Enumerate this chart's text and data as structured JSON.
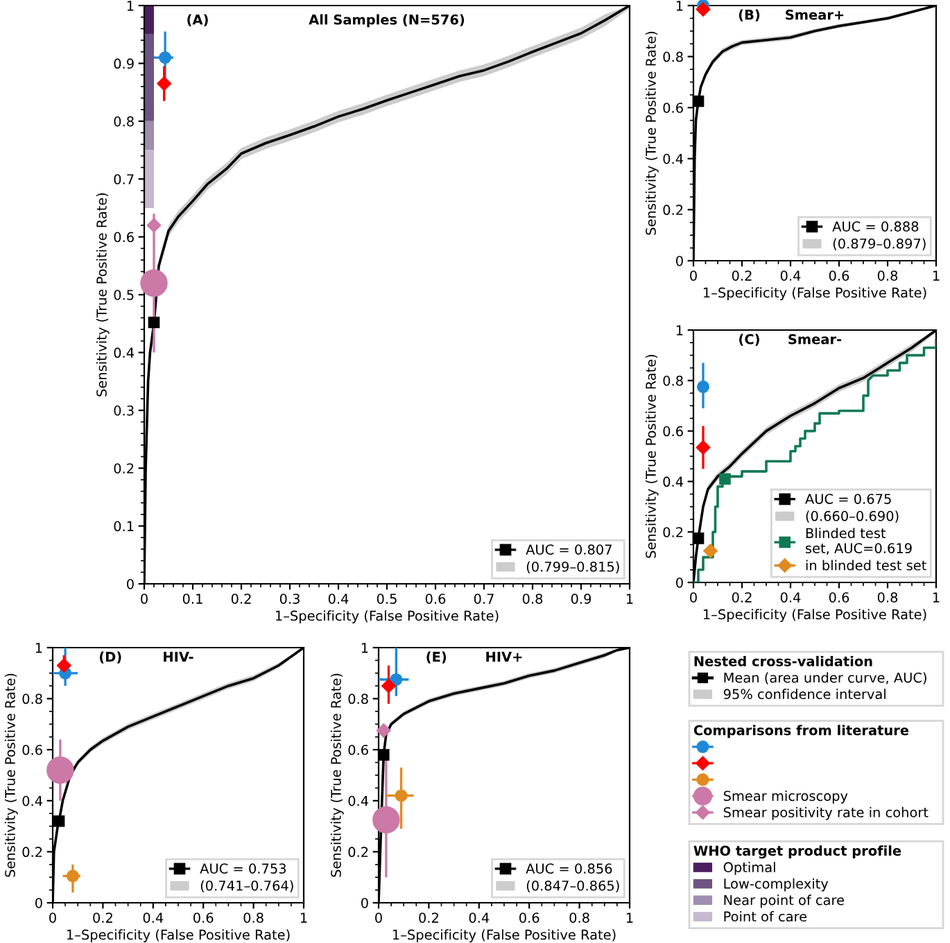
{
  "chart_data": [
    {
      "type": "line",
      "title": "All Samples (N=576)",
      "annotations": [
        "(A)"
      ],
      "xlabel": "1–Specificity (False Positive Rate)",
      "ylabel": "Sensitivity (True Positive Rate)",
      "xlim": [
        0,
        1
      ],
      "ylim": [
        0,
        1
      ],
      "xticks": [
        0,
        0.1,
        0.2,
        0.3,
        0.4,
        0.5,
        0.6,
        0.7,
        0.8,
        0.9,
        1
      ],
      "yticks": [
        0,
        0.1,
        0.2,
        0.3,
        0.4,
        0.5,
        0.6,
        0.7,
        0.8,
        0.9,
        1
      ],
      "legend": "lower right",
      "grid": false,
      "series": [
        {
          "type": "bar",
          "color": "#4b1f5e",
          "x": [
            0.01
          ],
          "base": [
            0.95
          ],
          "values": [
            0.05
          ]
        },
        {
          "type": "bar",
          "color": "#6e5482",
          "x": [
            0.01
          ],
          "base": [
            0.8
          ],
          "values": [
            0.15
          ]
        },
        {
          "type": "bar",
          "color": "#9f8eae",
          "x": [
            0.01
          ],
          "base": [
            0.75
          ],
          "values": [
            0.05
          ]
        },
        {
          "type": "bar",
          "color": "#c5b8cf",
          "x": [
            0.01
          ],
          "base": [
            0.65
          ],
          "values": [
            0.1
          ]
        },
        {
          "type": "line",
          "color": "#000000",
          "x": [
            0,
            0.003,
            0.008,
            0.012,
            0.02,
            0.025,
            0.03,
            0.04,
            0.05,
            0.07,
            0.1,
            0.13,
            0.17,
            0.2,
            0.25,
            0.3,
            0.35,
            0.4,
            0.45,
            0.5,
            0.55,
            0.6,
            0.65,
            0.7,
            0.75,
            0.8,
            0.85,
            0.9,
            0.95,
            1
          ],
          "values": [
            0,
            0.2,
            0.35,
            0.4,
            0.45,
            0.5,
            0.55,
            0.58,
            0.61,
            0.635,
            0.662,
            0.691,
            0.718,
            0.744,
            0.762,
            0.776,
            0.791,
            0.808,
            0.821,
            0.836,
            0.85,
            0.864,
            0.878,
            0.888,
            0.903,
            0.92,
            0.936,
            0.952,
            0.975,
            1
          ],
          "lower": [
            0,
            0.19,
            0.34,
            0.39,
            0.44,
            0.49,
            0.54,
            0.57,
            0.6,
            0.625,
            0.652,
            0.681,
            0.708,
            0.734,
            0.752,
            0.766,
            0.781,
            0.798,
            0.811,
            0.826,
            0.84,
            0.854,
            0.868,
            0.878,
            0.893,
            0.91,
            0.926,
            0.942,
            0.965,
            0.995
          ],
          "upper": [
            0.01,
            0.21,
            0.36,
            0.41,
            0.46,
            0.51,
            0.56,
            0.59,
            0.62,
            0.645,
            0.672,
            0.701,
            0.728,
            0.754,
            0.772,
            0.786,
            0.801,
            0.818,
            0.831,
            0.846,
            0.86,
            0.874,
            0.888,
            0.898,
            0.913,
            0.93,
            0.946,
            0.962,
            0.985,
            1
          ]
        },
        {
          "type": "scatter",
          "marker": "square",
          "name": "AUC = 0.807",
          "color": "#000000",
          "x": [
            0.02
          ],
          "values": [
            0.452
          ]
        },
        {
          "type": "area",
          "name": "(0.799–0.815)",
          "color": "#cccccc"
        },
        {
          "type": "bubble",
          "marker": "circle",
          "color": "#cc79a7",
          "x": [
            0.02
          ],
          "values": [
            0.52
          ],
          "sizes": [
            1
          ],
          "errors": [
            [
              0.4,
              0.6
            ]
          ]
        },
        {
          "type": "scatter",
          "marker": "diamond",
          "color": "#cc79a7",
          "x": [
            0.02
          ],
          "values": [
            0.62
          ],
          "errors": [
            [
              0.6,
              0.64
            ]
          ]
        },
        {
          "type": "scatter",
          "marker": "circle",
          "color": "#1f88d6",
          "x": [
            0.043
          ],
          "values": [
            0.91
          ],
          "errors": [
            [
              0.87,
              0.955
            ]
          ],
          "xerrors": [
            [
              0.02,
              0.06
            ]
          ]
        },
        {
          "type": "scatter",
          "marker": "diamond",
          "color": "#ff0000",
          "x": [
            0.041
          ],
          "values": [
            0.865
          ],
          "errors": [
            [
              0.835,
              0.895
            ]
          ]
        }
      ]
    },
    {
      "type": "line",
      "title": "Smear+",
      "annotations": [
        "(B)"
      ],
      "xlabel": "1–Specificity (False Positive Rate)",
      "ylabel": "Sensitivity (True Positive Rate)",
      "xlim": [
        0,
        1
      ],
      "ylim": [
        0,
        1
      ],
      "xticks": [
        0,
        0.2,
        0.4,
        0.6,
        0.8,
        1
      ],
      "yticks": [
        0,
        0.2,
        0.4,
        0.6,
        0.8,
        1
      ],
      "legend": "lower right",
      "grid": false,
      "series": [
        {
          "type": "line",
          "color": "#000000",
          "x": [
            0,
            0.005,
            0.01,
            0.02,
            0.03,
            0.05,
            0.08,
            0.12,
            0.16,
            0.2,
            0.3,
            0.4,
            0.5,
            0.6,
            0.7,
            0.8,
            0.9,
            1
          ],
          "values": [
            0,
            0.4,
            0.55,
            0.625,
            0.68,
            0.73,
            0.78,
            0.82,
            0.84,
            0.855,
            0.865,
            0.875,
            0.9,
            0.92,
            0.935,
            0.95,
            0.975,
            1
          ],
          "lower": [
            0,
            0.39,
            0.54,
            0.615,
            0.67,
            0.718,
            0.768,
            0.808,
            0.828,
            0.845,
            0.855,
            0.865,
            0.892,
            0.912,
            0.928,
            0.943,
            0.97,
            0.995
          ],
          "upper": [
            0.01,
            0.41,
            0.56,
            0.635,
            0.69,
            0.742,
            0.792,
            0.832,
            0.852,
            0.865,
            0.875,
            0.885,
            0.908,
            0.928,
            0.942,
            0.957,
            0.98,
            1
          ]
        },
        {
          "type": "scatter",
          "marker": "square",
          "name": "AUC = 0.888",
          "color": "#000000",
          "x": [
            0.02
          ],
          "values": [
            0.625
          ]
        },
        {
          "type": "area",
          "name": "(0.879–0.897)",
          "color": "#cccccc"
        },
        {
          "type": "scatter",
          "marker": "circle",
          "color": "#1f88d6",
          "x": [
            0.04
          ],
          "values": [
            1
          ]
        },
        {
          "type": "scatter",
          "marker": "diamond",
          "color": "#ff0000",
          "x": [
            0.04
          ],
          "values": [
            0.985
          ]
        }
      ]
    },
    {
      "type": "line",
      "title": "Smear-",
      "annotations": [
        "(C)"
      ],
      "xlabel": "1–Specificity (False Positive Rate)",
      "ylabel": "Sensitivity (True Positive Rate)",
      "xlim": [
        0,
        1
      ],
      "ylim": [
        0,
        1
      ],
      "xticks": [
        0,
        0.2,
        0.4,
        0.6,
        0.8,
        1
      ],
      "yticks": [
        0,
        0.2,
        0.4,
        0.6,
        0.8,
        1
      ],
      "legend": "lower right",
      "grid": false,
      "series": [
        {
          "type": "line",
          "color": "#000000",
          "x": [
            0,
            0.01,
            0.02,
            0.04,
            0.06,
            0.1,
            0.15,
            0.2,
            0.3,
            0.4,
            0.5,
            0.6,
            0.7,
            0.8,
            0.9,
            1
          ],
          "values": [
            0,
            0.1,
            0.175,
            0.3,
            0.37,
            0.42,
            0.46,
            0.51,
            0.6,
            0.66,
            0.71,
            0.77,
            0.81,
            0.87,
            0.93,
            1
          ],
          "lower": [
            0,
            0.085,
            0.16,
            0.285,
            0.355,
            0.405,
            0.445,
            0.495,
            0.585,
            0.645,
            0.695,
            0.755,
            0.795,
            0.855,
            0.915,
            0.99
          ],
          "upper": [
            0.01,
            0.115,
            0.19,
            0.315,
            0.385,
            0.435,
            0.475,
            0.525,
            0.615,
            0.675,
            0.725,
            0.785,
            0.825,
            0.885,
            0.945,
            1
          ]
        },
        {
          "type": "scatter",
          "marker": "square",
          "name": "AUC = 0.675",
          "color": "#000000",
          "x": [
            0.02
          ],
          "values": [
            0.175
          ]
        },
        {
          "type": "area",
          "name": "(0.660–0.690)",
          "color": "#cccccc"
        },
        {
          "type": "line",
          "color": "#117a55",
          "x": [
            0,
            0.02,
            0.02,
            0.04,
            0.04,
            0.08,
            0.08,
            0.09,
            0.09,
            0.1,
            0.1,
            0.12,
            0.12,
            0.2,
            0.2,
            0.3,
            0.3,
            0.4,
            0.4,
            0.42,
            0.42,
            0.44,
            0.44,
            0.46,
            0.46,
            0.5,
            0.5,
            0.52,
            0.52,
            0.6,
            0.6,
            0.7,
            0.7,
            0.72,
            0.72,
            0.74,
            0.8,
            0.8,
            0.85,
            0.85,
            0.88,
            0.88,
            0.95,
            0.95,
            1,
            1
          ],
          "values": [
            0,
            0,
            0.05,
            0.05,
            0.1,
            0.1,
            0.2,
            0.2,
            0.3,
            0.3,
            0.38,
            0.38,
            0.42,
            0.42,
            0.44,
            0.44,
            0.48,
            0.48,
            0.52,
            0.52,
            0.54,
            0.54,
            0.57,
            0.57,
            0.6,
            0.6,
            0.63,
            0.63,
            0.67,
            0.67,
            0.68,
            0.68,
            0.74,
            0.74,
            0.8,
            0.82,
            0.82,
            0.84,
            0.84,
            0.87,
            0.87,
            0.9,
            0.9,
            0.93,
            0.93,
            0.96
          ]
        },
        {
          "type": "scatter",
          "marker": "square",
          "name": "Blinded test\nset, AUC=0.619",
          "color": "#117a55",
          "x": [
            0.13
          ],
          "values": [
            0.41
          ]
        },
        {
          "type": "scatter",
          "marker": "circle",
          "color": "#1f88d6",
          "x": [
            0.04
          ],
          "values": [
            0.775
          ],
          "errors": [
            [
              0.69,
              0.87
            ]
          ]
        },
        {
          "type": "scatter",
          "marker": "diamond",
          "color": "#ff0000",
          "x": [
            0.04
          ],
          "values": [
            0.535
          ],
          "errors": [
            [
              0.45,
              0.62
            ]
          ]
        },
        {
          "type": "scatter",
          "marker": "diamond",
          "name": "in blinded test set",
          "color": "#e08a20",
          "x": [
            0.07
          ],
          "values": [
            0.125
          ]
        }
      ]
    },
    {
      "type": "line",
      "title": "HIV-",
      "annotations": [
        "(D)"
      ],
      "xlabel": "1–Specificity (False Positive Rate)",
      "ylabel": "Sensitivity (True Positive Rate)",
      "xlim": [
        0,
        1
      ],
      "ylim": [
        0,
        1
      ],
      "xticks": [
        0,
        0.2,
        0.4,
        0.6,
        0.8,
        1
      ],
      "yticks": [
        0,
        0.2,
        0.4,
        0.6,
        0.8,
        1
      ],
      "legend": "lower right",
      "grid": false,
      "series": [
        {
          "type": "line",
          "color": "#000000",
          "x": [
            0,
            0.005,
            0.02,
            0.025,
            0.04,
            0.07,
            0.1,
            0.15,
            0.2,
            0.3,
            0.4,
            0.5,
            0.6,
            0.7,
            0.8,
            0.9,
            1
          ],
          "values": [
            0,
            0.2,
            0.3,
            0.32,
            0.4,
            0.5,
            0.55,
            0.6,
            0.635,
            0.69,
            0.73,
            0.77,
            0.81,
            0.85,
            0.88,
            0.93,
            1
          ],
          "lower": [
            0,
            0.188,
            0.288,
            0.308,
            0.388,
            0.488,
            0.538,
            0.588,
            0.623,
            0.678,
            0.718,
            0.758,
            0.798,
            0.838,
            0.868,
            0.92,
            0.995
          ],
          "upper": [
            0.01,
            0.212,
            0.312,
            0.332,
            0.412,
            0.512,
            0.562,
            0.612,
            0.647,
            0.702,
            0.742,
            0.782,
            0.822,
            0.862,
            0.892,
            0.94,
            1
          ]
        },
        {
          "type": "scatter",
          "marker": "square",
          "name": "AUC = 0.753",
          "color": "#000000",
          "x": [
            0.025
          ],
          "values": [
            0.32
          ]
        },
        {
          "type": "area",
          "name": "(0.741–0.764)",
          "color": "#cccccc"
        },
        {
          "type": "bubble",
          "marker": "circle",
          "color": "#cc79a7",
          "x": [
            0.03
          ],
          "values": [
            0.52
          ],
          "sizes": [
            1
          ],
          "errors": [
            [
              0.4,
              0.64
            ]
          ]
        },
        {
          "type": "scatter",
          "marker": "circle",
          "color": "#1f88d6",
          "x": [
            0.05
          ],
          "values": [
            0.9
          ],
          "errors": [
            [
              0.85,
              1
            ]
          ],
          "xerrors": [
            [
              0,
              0.1
            ]
          ]
        },
        {
          "type": "scatter",
          "marker": "diamond",
          "color": "#ff0000",
          "x": [
            0.045
          ],
          "values": [
            0.93
          ],
          "errors": [
            [
              0.89,
              0.97
            ]
          ],
          "xerrors": [
            [
              0.035,
              0.055
            ]
          ]
        },
        {
          "type": "scatter",
          "marker": "circle",
          "color": "#e08a20",
          "x": [
            0.08
          ],
          "values": [
            0.105
          ],
          "errors": [
            [
              0.04,
              0.15
            ]
          ],
          "xerrors": [
            [
              0.04,
              0.11
            ]
          ]
        }
      ]
    },
    {
      "type": "line",
      "title": "HIV+",
      "annotations": [
        "(E)"
      ],
      "xlabel": "1–Specificity (False Positive Rate)",
      "ylabel": "Sensitivity (True Positive Rate)",
      "xlim": [
        0,
        1
      ],
      "ylim": [
        0,
        1
      ],
      "xticks": [
        0,
        0.2,
        0.4,
        0.6,
        0.8,
        1
      ],
      "yticks": [
        0,
        0.2,
        0.4,
        0.6,
        0.8,
        1
      ],
      "legend": "lower right",
      "grid": false,
      "series": [
        {
          "type": "line",
          "color": "#000000",
          "x": [
            0,
            0.01,
            0.02,
            0.03,
            0.05,
            0.1,
            0.2,
            0.3,
            0.4,
            0.5,
            0.6,
            0.7,
            0.8,
            0.9,
            0.95,
            1
          ],
          "values": [
            0,
            0.3,
            0.58,
            0.66,
            0.7,
            0.74,
            0.79,
            0.82,
            0.84,
            0.86,
            0.89,
            0.91,
            0.94,
            0.97,
            0.99,
            1
          ],
          "lower": [
            0,
            0.29,
            0.57,
            0.65,
            0.69,
            0.73,
            0.78,
            0.81,
            0.83,
            0.85,
            0.88,
            0.9,
            0.93,
            0.96,
            0.985,
            0.995
          ],
          "upper": [
            0.01,
            0.31,
            0.59,
            0.67,
            0.71,
            0.75,
            0.8,
            0.83,
            0.85,
            0.87,
            0.9,
            0.92,
            0.95,
            0.98,
            0.995,
            1
          ]
        },
        {
          "type": "scatter",
          "marker": "square",
          "name": "AUC = 0.856",
          "color": "#000000",
          "x": [
            0.02
          ],
          "values": [
            0.58
          ]
        },
        {
          "type": "area",
          "name": "(0.847–0.865)",
          "color": "#cccccc"
        },
        {
          "type": "bubble",
          "marker": "circle",
          "color": "#cc79a7",
          "x": [
            0.03
          ],
          "values": [
            0.325
          ],
          "sizes": [
            1
          ],
          "errors": [
            [
              0.1,
              0.58
            ]
          ]
        },
        {
          "type": "scatter",
          "marker": "diamond",
          "color": "#cc79a7",
          "x": [
            0.02
          ],
          "values": [
            0.675
          ]
        },
        {
          "type": "scatter",
          "marker": "circle",
          "color": "#1f88d6",
          "x": [
            0.07
          ],
          "values": [
            0.875
          ],
          "errors": [
            [
              0.81,
              1
            ]
          ],
          "xerrors": [
            [
              0,
              0.12
            ]
          ]
        },
        {
          "type": "scatter",
          "marker": "diamond",
          "color": "#ff0000",
          "x": [
            0.04
          ],
          "values": [
            0.85
          ],
          "errors": [
            [
              0.78,
              0.93
            ]
          ],
          "xerrors": [
            [
              0.03,
              0.05
            ]
          ]
        },
        {
          "type": "scatter",
          "marker": "circle",
          "color": "#e08a20",
          "x": [
            0.09
          ],
          "values": [
            0.42
          ],
          "errors": [
            [
              0.29,
              0.53
            ]
          ],
          "xerrors": [
            [
              0.03,
              0.14
            ]
          ]
        }
      ]
    },
    {
      "type": "other",
      "legend_title": "Nested cross-validation",
      "legend": "right",
      "series": [
        {
          "type": "line",
          "marker": "square",
          "name": "Mean (area under curve, AUC)",
          "color": "#000000"
        },
        {
          "type": "area",
          "name": "95% confidence interval",
          "color": "#cccccc"
        }
      ]
    },
    {
      "type": "other",
      "legend_title": "Comparisons from literature",
      "legend": "right",
      "series": [
        {
          "type": "scatter",
          "marker": "circle",
          "color": "#1f88d6"
        },
        {
          "type": "scatter",
          "marker": "diamond",
          "color": "#ff0000"
        },
        {
          "type": "scatter",
          "marker": "circle",
          "color": "#e08a20"
        },
        {
          "type": "bubble",
          "marker": "circle",
          "name": "Smear microscopy",
          "color": "#cc79a7"
        },
        {
          "type": "scatter",
          "marker": "diamond",
          "name": "Smear positivity rate in cohort",
          "color": "#cc79a7"
        }
      ]
    },
    {
      "type": "other",
      "legend_title": "WHO target product profile",
      "legend": "right",
      "series": [
        {
          "type": "bar",
          "name": "Optimal",
          "color": "#4b1f5e"
        },
        {
          "type": "bar",
          "name": "Low-complexity",
          "color": "#6e5482"
        },
        {
          "type": "bar",
          "name": "Near point of care",
          "color": "#9f8eae"
        },
        {
          "type": "bar",
          "name": "Point of care",
          "color": "#c5b8cf"
        }
      ]
    }
  ]
}
